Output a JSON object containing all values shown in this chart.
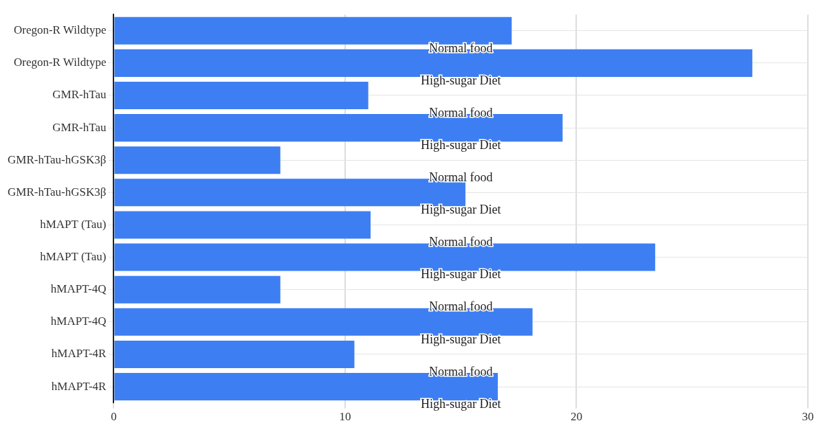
{
  "chart_data": {
    "type": "bar",
    "orientation": "horizontal",
    "categories": [
      "Oregon-R Wildtype",
      "Oregon-R Wildtype",
      "GMR-hTau",
      "GMR-hTau",
      "GMR-hTau-hGSK3β",
      "GMR-hTau-hGSK3β",
      "hMAPT (Tau)",
      "hMAPT (Tau)",
      "hMAPT-4Q",
      "hMAPT-4Q",
      "hMAPT-4R",
      "hMAPT-4R"
    ],
    "series": [
      {
        "name": "Normal food",
        "color": "#3d7ff2",
        "values": [
          17.2,
          null,
          11.0,
          null,
          7.2,
          null,
          11.1,
          null,
          7.2,
          null,
          10.4,
          null
        ]
      },
      {
        "name": "High-sugar Diet",
        "color": "#3d7ff2",
        "values": [
          null,
          27.6,
          null,
          19.4,
          null,
          15.2,
          null,
          23.4,
          null,
          18.1,
          null,
          16.6
        ]
      }
    ],
    "xlim": [
      0,
      30
    ],
    "xticks": [
      0,
      10,
      20,
      30
    ],
    "grid": true,
    "legend": false
  }
}
